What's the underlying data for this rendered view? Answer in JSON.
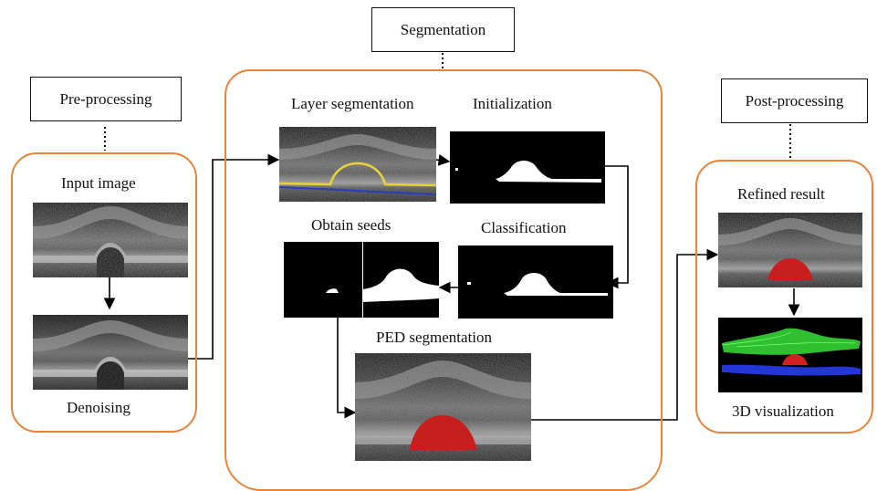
{
  "stages": {
    "preprocessing": "Pre-processing",
    "segmentation": "Segmentation",
    "postprocessing": "Post-processing"
  },
  "steps": {
    "input_image": "Input image",
    "denoising": "Denoising",
    "layer_segmentation": "Layer segmentation",
    "initialization": "Initialization",
    "classification": "Classification",
    "obtain_seeds": "Obtain seeds",
    "ped_segmentation": "PED segmentation",
    "refined_result": "Refined result",
    "visualization_3d": "3D visualization"
  },
  "colors": {
    "group_border": "#e8833a",
    "ped_fill": "#c81e1e",
    "layer_yellow": "#e6d23a",
    "layer_blue": "#2a3fb8",
    "surface_green": "#2fbf2f",
    "surface_blue": "#2436d6"
  }
}
